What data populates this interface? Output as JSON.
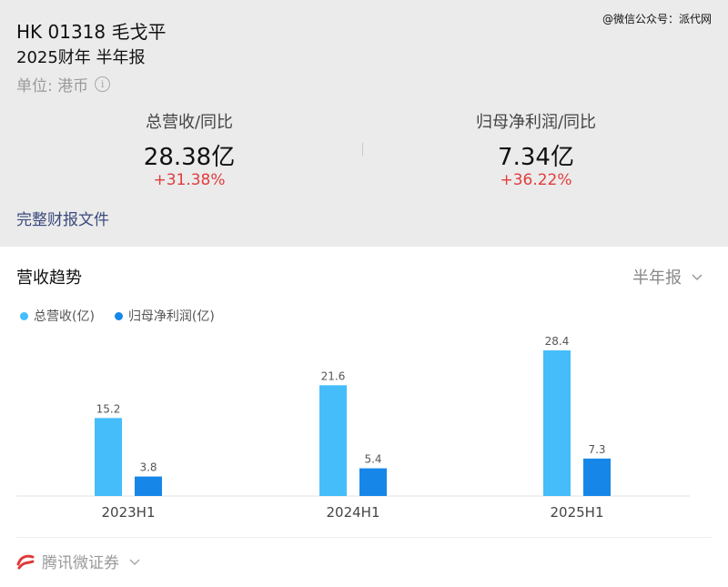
{
  "header": {
    "watermark": "@微信公众号：派代网",
    "ticker": "HK 01318 毛戈平",
    "period": "2025财年 半年报",
    "unit": "单位: 港币",
    "info_icon": "i"
  },
  "metrics": [
    {
      "label": "总营收/同比",
      "value": "28.38亿",
      "change": "+31.38%"
    },
    {
      "label": "归母净利润/同比",
      "value": "7.34亿",
      "change": "+36.22%"
    }
  ],
  "report_link": "完整财报文件",
  "trend": {
    "title": "营收趋势",
    "selector": "半年报",
    "selector_icon": "chevron-down-icon"
  },
  "chart_data": {
    "type": "bar",
    "categories": [
      "2023H1",
      "2024H1",
      "2025H1"
    ],
    "series": [
      {
        "name": "总营收(亿)",
        "values": [
          15.2,
          21.6,
          28.4
        ],
        "color": "#45bdfb"
      },
      {
        "name": "归母净利润(亿)",
        "values": [
          3.8,
          5.4,
          7.3
        ],
        "color": "#1687e8"
      }
    ],
    "ylim": [
      0,
      30
    ],
    "legend": "top-left"
  },
  "footer": {
    "brand": "腾讯微证券",
    "brand_icon": "tencent-securities-logo-icon"
  },
  "colors": {
    "change_up": "#e23c3c",
    "link": "#3b4a7d"
  }
}
